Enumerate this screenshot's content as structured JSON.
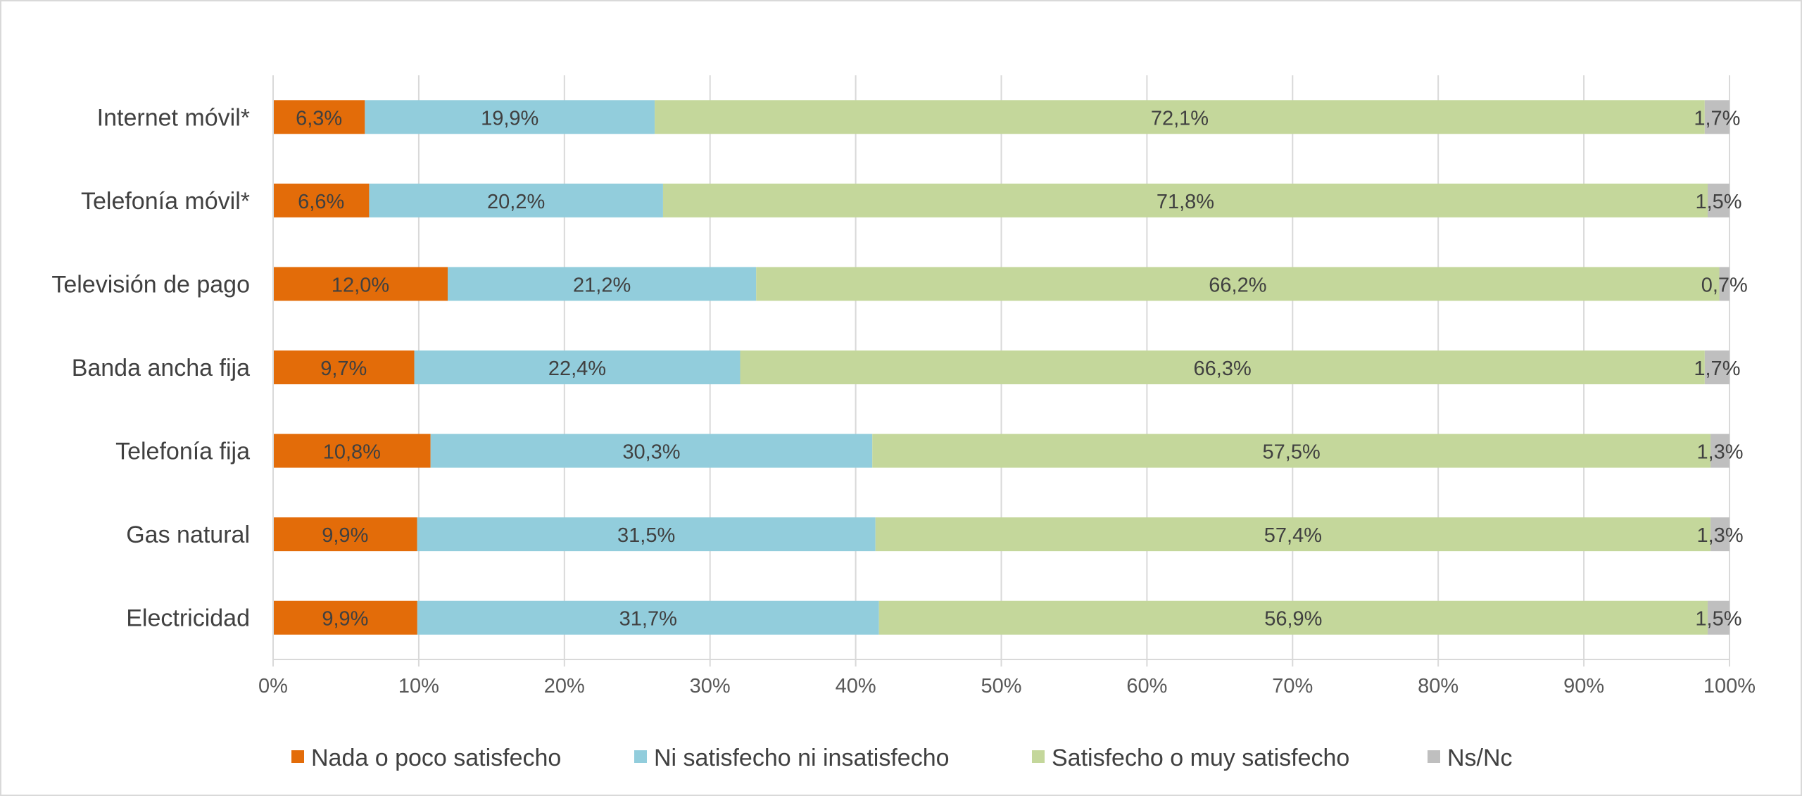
{
  "chart_data": {
    "type": "bar",
    "orientation": "horizontal",
    "stacked": "percent",
    "categories": [
      "Internet móvil*",
      "Telefonía móvil*",
      "Televisión de pago",
      "Banda ancha fija",
      "Telefonía fija",
      "Gas natural",
      "Electricidad"
    ],
    "series": [
      {
        "name": "Nada o poco satisfecho",
        "color": "#e36c09",
        "values": [
          6.3,
          6.6,
          12.0,
          9.7,
          10.8,
          9.9,
          9.9
        ],
        "labels": [
          "6,3%",
          "6,6%",
          "12,0%",
          "9,7%",
          "10,8%",
          "9,9%",
          "9,9%"
        ]
      },
      {
        "name": "Ni satisfecho ni insatisfecho",
        "color": "#92cddc",
        "values": [
          19.9,
          20.2,
          21.2,
          22.4,
          30.3,
          31.5,
          31.7
        ],
        "labels": [
          "19,9%",
          "20,2%",
          "21,2%",
          "22,4%",
          "30,3%",
          "31,5%",
          "31,7%"
        ]
      },
      {
        "name": "Satisfecho o muy satisfecho",
        "color": "#c4d79b",
        "values": [
          72.1,
          71.8,
          66.2,
          66.3,
          57.5,
          57.4,
          56.9
        ],
        "labels": [
          "72,1%",
          "71,8%",
          "66,2%",
          "66,3%",
          "57,5%",
          "57,4%",
          "56,9%"
        ]
      },
      {
        "name": "Ns/Nc",
        "color": "#bfbfbf",
        "values": [
          1.7,
          1.5,
          0.7,
          1.7,
          1.3,
          1.3,
          1.5
        ],
        "labels": [
          "1,7%",
          "1,5%",
          "0,7%",
          "1,7%",
          "1,3%",
          "1,3%",
          "1,5%"
        ]
      }
    ],
    "x_ticks": [
      "0%",
      "10%",
      "20%",
      "30%",
      "40%",
      "50%",
      "60%",
      "70%",
      "80%",
      "90%",
      "100%"
    ],
    "xlim": [
      0,
      100
    ],
    "grid": "vertical",
    "legend": "bottom"
  }
}
